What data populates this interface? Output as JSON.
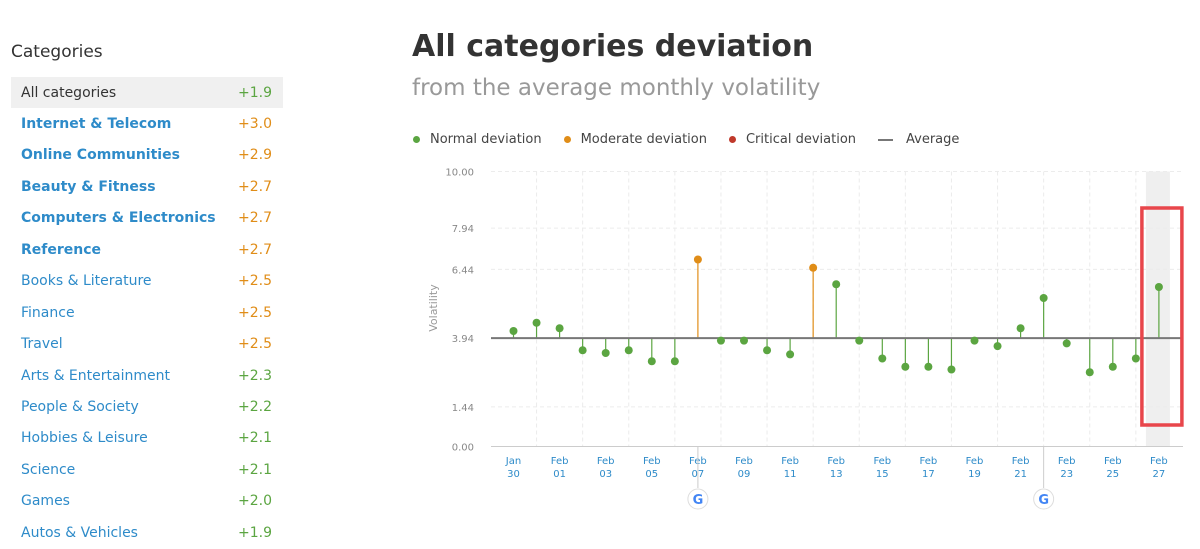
{
  "sidebar": {
    "title": "Categories",
    "items": [
      {
        "label": "All categories",
        "value": "+1.9",
        "level": "normal",
        "active": true,
        "bold": false
      },
      {
        "label": "Internet & Telecom",
        "value": "+3.0",
        "level": "moderate",
        "active": false,
        "bold": true
      },
      {
        "label": "Online Communities",
        "value": "+2.9",
        "level": "moderate",
        "active": false,
        "bold": true
      },
      {
        "label": "Beauty & Fitness",
        "value": "+2.7",
        "level": "moderate",
        "active": false,
        "bold": true
      },
      {
        "label": "Computers & Electronics",
        "value": "+2.7",
        "level": "moderate",
        "active": false,
        "bold": true
      },
      {
        "label": "Reference",
        "value": "+2.7",
        "level": "moderate",
        "active": false,
        "bold": true
      },
      {
        "label": "Books & Literature",
        "value": "+2.5",
        "level": "moderate",
        "active": false,
        "bold": false
      },
      {
        "label": "Finance",
        "value": "+2.5",
        "level": "moderate",
        "active": false,
        "bold": false
      },
      {
        "label": "Travel",
        "value": "+2.5",
        "level": "moderate",
        "active": false,
        "bold": false
      },
      {
        "label": "Arts & Entertainment",
        "value": "+2.3",
        "level": "normal",
        "active": false,
        "bold": false
      },
      {
        "label": "People & Society",
        "value": "+2.2",
        "level": "normal",
        "active": false,
        "bold": false
      },
      {
        "label": "Hobbies & Leisure",
        "value": "+2.1",
        "level": "normal",
        "active": false,
        "bold": false
      },
      {
        "label": "Science",
        "value": "+2.1",
        "level": "normal",
        "active": false,
        "bold": false
      },
      {
        "label": "Games",
        "value": "+2.0",
        "level": "normal",
        "active": false,
        "bold": false
      },
      {
        "label": "Autos & Vehicles",
        "value": "+1.9",
        "level": "normal",
        "active": false,
        "bold": false
      }
    ]
  },
  "header": {
    "title": "All categories deviation",
    "subtitle": "from the average monthly volatility"
  },
  "legend": [
    {
      "label": "Normal deviation",
      "kind": "dot",
      "color": "#5ba541"
    },
    {
      "label": "Moderate deviation",
      "kind": "dot",
      "color": "#e08d18"
    },
    {
      "label": "Critical deviation",
      "kind": "dot",
      "color": "#c0392b"
    },
    {
      "label": "Average",
      "kind": "line",
      "color": "#777777"
    }
  ],
  "colors": {
    "normal": "#5ba541",
    "moderate": "#e08d18",
    "critical": "#c0392b",
    "average": "#777777",
    "link": "#2e8bc9",
    "highlight_box": "#e8464b"
  },
  "chart_data": {
    "type": "scatter",
    "ylabel": "Volatility",
    "ylim": [
      0,
      10
    ],
    "y_ticks": [
      "10.00",
      "7.94",
      "6.44",
      "3.94",
      "1.44",
      "0.00"
    ],
    "average": 3.94,
    "x_tick_labels": [
      [
        "Jan",
        "30"
      ],
      [
        "Feb",
        "01"
      ],
      [
        "Feb",
        "03"
      ],
      [
        "Feb",
        "05"
      ],
      [
        "Feb",
        "07"
      ],
      [
        "Feb",
        "09"
      ],
      [
        "Feb",
        "11"
      ],
      [
        "Feb",
        "13"
      ],
      [
        "Feb",
        "15"
      ],
      [
        "Feb",
        "17"
      ],
      [
        "Feb",
        "19"
      ],
      [
        "Feb",
        "21"
      ],
      [
        "Feb",
        "23"
      ],
      [
        "Feb",
        "25"
      ],
      [
        "Feb",
        "27"
      ]
    ],
    "points": [
      {
        "date": "Jan 30",
        "value": 4.2,
        "level": "normal"
      },
      {
        "date": "Jan 31",
        "value": 4.5,
        "level": "normal"
      },
      {
        "date": "Feb 01",
        "value": 4.3,
        "level": "normal"
      },
      {
        "date": "Feb 02",
        "value": 3.5,
        "level": "normal"
      },
      {
        "date": "Feb 03",
        "value": 3.4,
        "level": "normal"
      },
      {
        "date": "Feb 04",
        "value": 3.5,
        "level": "normal"
      },
      {
        "date": "Feb 05",
        "value": 3.1,
        "level": "normal"
      },
      {
        "date": "Feb 06",
        "value": 3.1,
        "level": "normal"
      },
      {
        "date": "Feb 07",
        "value": 6.8,
        "level": "moderate"
      },
      {
        "date": "Feb 08",
        "value": 3.85,
        "level": "normal"
      },
      {
        "date": "Feb 09",
        "value": 3.85,
        "level": "normal"
      },
      {
        "date": "Feb 10",
        "value": 3.5,
        "level": "normal"
      },
      {
        "date": "Feb 11",
        "value": 3.35,
        "level": "normal"
      },
      {
        "date": "Feb 12",
        "value": 6.5,
        "level": "moderate"
      },
      {
        "date": "Feb 13",
        "value": 5.9,
        "level": "normal"
      },
      {
        "date": "Feb 14",
        "value": 3.85,
        "level": "normal"
      },
      {
        "date": "Feb 15",
        "value": 3.2,
        "level": "normal"
      },
      {
        "date": "Feb 16",
        "value": 2.9,
        "level": "normal"
      },
      {
        "date": "Feb 17",
        "value": 2.9,
        "level": "normal"
      },
      {
        "date": "Feb 18",
        "value": 2.8,
        "level": "normal"
      },
      {
        "date": "Feb 19",
        "value": 3.85,
        "level": "normal"
      },
      {
        "date": "Feb 20",
        "value": 3.65,
        "level": "normal"
      },
      {
        "date": "Feb 21",
        "value": 4.3,
        "level": "normal"
      },
      {
        "date": "Feb 22",
        "value": 5.4,
        "level": "normal"
      },
      {
        "date": "Feb 23",
        "value": 3.75,
        "level": "normal"
      },
      {
        "date": "Feb 24",
        "value": 2.7,
        "level": "normal"
      },
      {
        "date": "Feb 25",
        "value": 2.9,
        "level": "normal"
      },
      {
        "date": "Feb 26",
        "value": 3.2,
        "level": "normal"
      },
      {
        "date": "Feb 27",
        "value": 5.8,
        "level": "normal"
      }
    ],
    "google_update_markers": [
      "Feb 07",
      "Feb 22"
    ],
    "highlighted_date": "Feb 27",
    "grid": true
  }
}
